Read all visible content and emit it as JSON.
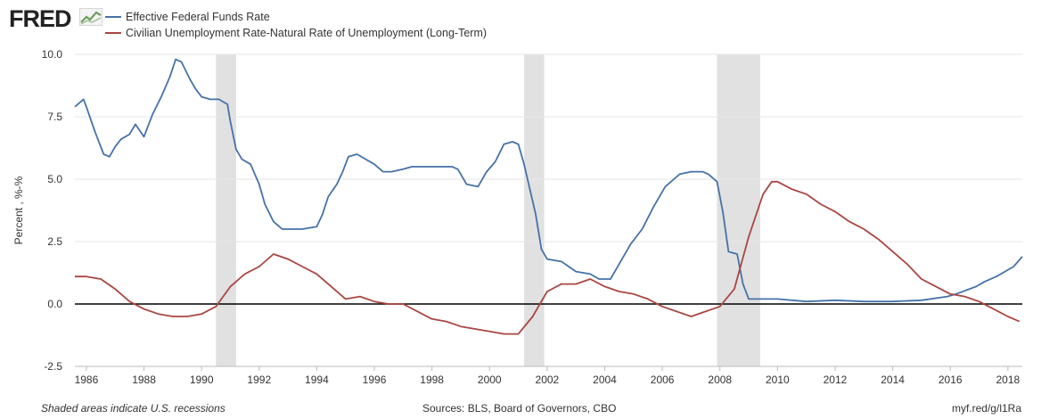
{
  "brand": {
    "logo_text": "FRED",
    "logo_icon": "trend-chart-icon"
  },
  "footer": {
    "recession_note": "Shaded areas indicate U.S. recessions",
    "sources": "Sources: BLS, Board of Governors, CBO",
    "short_link": "myf.red/g/l1Ra"
  },
  "chart_data": {
    "type": "line",
    "ylabel": "Percent , %-%",
    "ylim": [
      -2.5,
      10.0
    ],
    "xlim": [
      1985.6,
      2018.5
    ],
    "yticks": [
      -2.5,
      0.0,
      2.5,
      5.0,
      7.5,
      10.0
    ],
    "ytick_labels": [
      "-2.5",
      "0.0",
      "2.5",
      "5.0",
      "7.5",
      "10.0"
    ],
    "xticks": [
      1986,
      1988,
      1990,
      1992,
      1994,
      1996,
      1998,
      2000,
      2002,
      2004,
      2006,
      2008,
      2010,
      2012,
      2014,
      2016,
      2018
    ],
    "xtick_labels": [
      "1986",
      "1988",
      "1990",
      "1992",
      "1994",
      "1996",
      "1998",
      "2000",
      "2002",
      "2004",
      "2006",
      "2008",
      "2010",
      "2012",
      "2014",
      "2016",
      "2018"
    ],
    "grid": "horizontal",
    "zero_line": true,
    "recessions": [
      [
        1990.5,
        1991.2
      ],
      [
        2001.2,
        2001.9
      ],
      [
        2007.9,
        2009.4
      ]
    ],
    "series": [
      {
        "name": "Effective Federal Funds Rate",
        "color": "#4572a7",
        "x": [
          1985.6,
          1985.9,
          1986.0,
          1986.3,
          1986.6,
          1986.8,
          1987.0,
          1987.2,
          1987.5,
          1987.7,
          1988.0,
          1988.3,
          1988.6,
          1988.9,
          1989.1,
          1989.3,
          1989.6,
          1989.8,
          1990.0,
          1990.3,
          1990.6,
          1990.9,
          1991.0,
          1991.2,
          1991.4,
          1991.7,
          1992.0,
          1992.2,
          1992.5,
          1992.8,
          1993.0,
          1993.5,
          1994.0,
          1994.2,
          1994.4,
          1994.7,
          1994.9,
          1995.1,
          1995.4,
          1995.7,
          1996.0,
          1996.3,
          1996.6,
          1997.0,
          1997.3,
          1997.6,
          1998.0,
          1998.4,
          1998.7,
          1998.9,
          1999.2,
          1999.6,
          1999.9,
          2000.2,
          2000.5,
          2000.8,
          2001.0,
          2001.2,
          2001.4,
          2001.6,
          2001.8,
          2002.0,
          2002.5,
          2003.0,
          2003.5,
          2003.8,
          2004.2,
          2004.5,
          2004.9,
          2005.3,
          2005.7,
          2006.1,
          2006.6,
          2007.0,
          2007.4,
          2007.6,
          2007.9,
          2008.1,
          2008.3,
          2008.6,
          2008.8,
          2009.0,
          2009.5,
          2010.0,
          2011.0,
          2012.0,
          2013.0,
          2014.0,
          2015.0,
          2015.9,
          2016.2,
          2016.9,
          2017.2,
          2017.6,
          2017.9,
          2018.2,
          2018.5
        ],
        "values": [
          7.9,
          8.2,
          7.9,
          6.9,
          6.0,
          5.9,
          6.3,
          6.6,
          6.8,
          7.2,
          6.7,
          7.6,
          8.3,
          9.1,
          9.8,
          9.7,
          9.0,
          8.6,
          8.3,
          8.2,
          8.2,
          8.0,
          7.3,
          6.2,
          5.8,
          5.6,
          4.8,
          4.0,
          3.3,
          3.0,
          3.0,
          3.0,
          3.1,
          3.6,
          4.3,
          4.8,
          5.3,
          5.9,
          6.0,
          5.8,
          5.6,
          5.3,
          5.3,
          5.4,
          5.5,
          5.5,
          5.5,
          5.5,
          5.5,
          5.4,
          4.8,
          4.7,
          5.3,
          5.7,
          6.4,
          6.5,
          6.4,
          5.6,
          4.6,
          3.6,
          2.2,
          1.8,
          1.7,
          1.3,
          1.2,
          1.0,
          1.0,
          1.6,
          2.4,
          3.0,
          3.9,
          4.7,
          5.2,
          5.3,
          5.3,
          5.2,
          4.9,
          3.7,
          2.1,
          2.0,
          0.8,
          0.2,
          0.2,
          0.2,
          0.1,
          0.15,
          0.1,
          0.1,
          0.15,
          0.3,
          0.4,
          0.7,
          0.9,
          1.1,
          1.3,
          1.5,
          1.9
        ]
      },
      {
        "name": "Civilian Unemployment Rate-Natural Rate of Unemployment (Long-Term)",
        "color": "#aa4643",
        "x": [
          1985.6,
          1986.0,
          1986.5,
          1987.0,
          1987.5,
          1988.0,
          1988.5,
          1989.0,
          1989.5,
          1990.0,
          1990.5,
          1991.0,
          1991.5,
          1992.0,
          1992.5,
          1993.0,
          1993.5,
          1994.0,
          1994.5,
          1995.0,
          1995.5,
          1996.0,
          1996.5,
          1997.0,
          1997.5,
          1998.0,
          1998.5,
          1999.0,
          1999.5,
          2000.0,
          2000.5,
          2001.0,
          2001.5,
          2002.0,
          2002.5,
          2003.0,
          2003.5,
          2004.0,
          2004.5,
          2005.0,
          2005.5,
          2006.0,
          2006.5,
          2007.0,
          2007.5,
          2008.0,
          2008.5,
          2009.0,
          2009.5,
          2009.8,
          2010.0,
          2010.5,
          2011.0,
          2011.5,
          2012.0,
          2012.5,
          2013.0,
          2013.5,
          2014.0,
          2014.5,
          2015.0,
          2015.5,
          2016.0,
          2016.5,
          2017.0,
          2017.5,
          2018.0,
          2018.4
        ],
        "values": [
          1.1,
          1.1,
          1.0,
          0.6,
          0.1,
          -0.2,
          -0.4,
          -0.5,
          -0.5,
          -0.4,
          -0.1,
          0.7,
          1.2,
          1.5,
          2.0,
          1.8,
          1.5,
          1.2,
          0.7,
          0.2,
          0.3,
          0.1,
          0.0,
          0.0,
          -0.3,
          -0.6,
          -0.7,
          -0.9,
          -1.0,
          -1.1,
          -1.2,
          -1.2,
          -0.5,
          0.5,
          0.8,
          0.8,
          1.0,
          0.7,
          0.5,
          0.4,
          0.2,
          -0.1,
          -0.3,
          -0.5,
          -0.3,
          -0.1,
          0.6,
          2.7,
          4.4,
          4.9,
          4.9,
          4.6,
          4.4,
          4.0,
          3.7,
          3.3,
          3.0,
          2.6,
          2.1,
          1.6,
          1.0,
          0.7,
          0.4,
          0.3,
          0.1,
          -0.2,
          -0.5,
          -0.7
        ]
      }
    ]
  }
}
